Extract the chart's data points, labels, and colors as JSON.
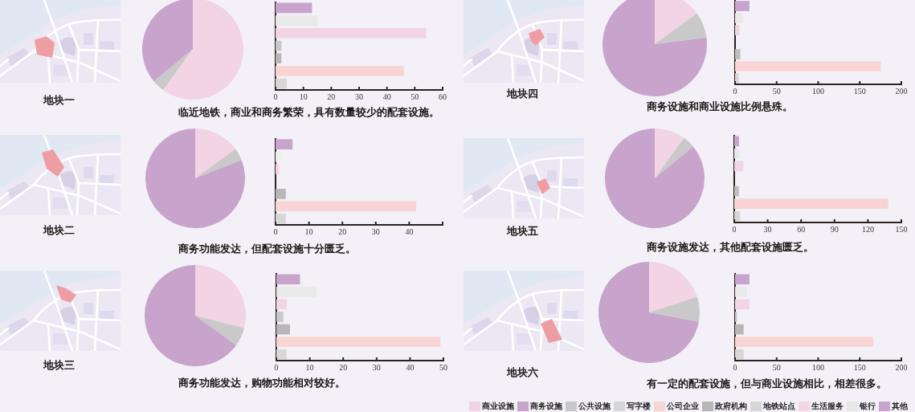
{
  "chart_data": [
    {
      "type": "pie",
      "title": "地块一",
      "annotations": [
        "临近地铁，商业和商务繁荣，具有数量较少的配套设施。"
      ],
      "categories": [
        null,
        null,
        null
      ],
      "values": [
        60,
        4,
        36
      ],
      "colors": [
        "#f2d4e4",
        "#c9c9c9",
        "#c8a3cb"
      ]
    },
    {
      "type": "bar",
      "orientation": "horizontal",
      "tick_labels": "x",
      "categories": [
        null,
        null,
        null,
        null,
        null,
        null,
        null
      ],
      "values": [
        13,
        15,
        54,
        2,
        2,
        46,
        4
      ],
      "colors": [
        "#c8a3cb",
        "#e8e9e8",
        "#f2d4e4",
        "#c7c8c7",
        "#b6b7b6",
        "#f8d5d4",
        "#d6d7d6"
      ],
      "xlim": [
        0,
        60
      ],
      "xticks": [
        0,
        10,
        20,
        30,
        40,
        50,
        60
      ]
    },
    {
      "type": "pie",
      "title": "地块四",
      "annotations": [
        "商务设施和商业设施比例悬殊。"
      ],
      "categories": [
        null,
        null,
        null
      ],
      "values": [
        15,
        8,
        77
      ],
      "colors": [
        "#f2d4e4",
        "#c9c9c9",
        "#c8a3cb"
      ]
    },
    {
      "type": "bar",
      "orientation": "horizontal",
      "tick_labels": "x",
      "categories": [
        null,
        null,
        null,
        null,
        null,
        null,
        null
      ],
      "values": [
        17,
        9,
        5,
        null,
        6,
        175,
        4
      ],
      "colors": [
        "#c8a3cb",
        "#e8e9e8",
        "#f2d4e4",
        "#c7c8c7",
        "#bdbebd",
        "#f8d5d4",
        "#d6d7d6"
      ],
      "xlim": [
        0,
        200
      ],
      "xticks": [
        0,
        50,
        100,
        150,
        200
      ]
    },
    {
      "type": "pie",
      "title": "地块二",
      "annotations": [
        "商务功能发达，但配套设施十分匮乏。"
      ],
      "categories": [
        null,
        null,
        null
      ],
      "values": [
        15,
        4,
        81
      ],
      "colors": [
        "#f2d4e4",
        "#c9c9c9",
        "#c8a3cb"
      ]
    },
    {
      "type": "bar",
      "orientation": "horizontal",
      "tick_labels": "x",
      "categories": [
        null,
        null,
        null,
        null,
        null,
        null,
        null
      ],
      "values": [
        5,
        2,
        1,
        null,
        3,
        42,
        3
      ],
      "colors": [
        "#c8a3cb",
        "#eef0ee",
        "#f2d4e4",
        "#c7c8c7",
        "#b6b7b6",
        "#f8d5d4",
        "#d6d7d6"
      ],
      "xlim": [
        0,
        50
      ],
      "xticks": [
        0,
        10,
        20,
        30,
        40,
        {
          "value": 50,
          "label": null
        }
      ]
    },
    {
      "type": "pie",
      "title": "地块五",
      "annotations": [
        "商务设施发达，其他配套设施匮乏。"
      ],
      "categories": [
        null,
        null,
        null
      ],
      "values": [
        10,
        4,
        86
      ],
      "colors": [
        "#f2d4e4",
        "#c9c9c9",
        "#c8a3cb"
      ]
    },
    {
      "type": "bar",
      "orientation": "horizontal",
      "tick_labels": "x",
      "categories": [
        null,
        null,
        null,
        null,
        null,
        null,
        null
      ],
      "values": [
        4,
        4,
        8,
        null,
        4,
        138,
        5
      ],
      "colors": [
        "#c8a3cb",
        "#e8e9e8",
        "#f2d4e4",
        "#c7c8c7",
        "#bdbebd",
        "#f8d5d4",
        "#d6d7d6"
      ],
      "xlim": [
        0,
        150
      ],
      "xticks": [
        0,
        30,
        60,
        90,
        120,
        150
      ]
    },
    {
      "type": "pie",
      "title": "地块三",
      "annotations": [
        "商务功能发达，购物功能相对较好。"
      ],
      "categories": [
        null,
        null,
        null
      ],
      "values": [
        29,
        6,
        65
      ],
      "colors": [
        "#f2d4e4",
        "#c9c9c9",
        "#c8a3cb"
      ]
    },
    {
      "type": "bar",
      "orientation": "horizontal",
      "tick_labels": "x",
      "categories": [
        null,
        null,
        null,
        null,
        null,
        null,
        null
      ],
      "values": [
        7,
        12,
        3,
        2,
        4,
        49,
        3
      ],
      "colors": [
        "#c8a3cb",
        "#e8e9e8",
        "#f2d4e4",
        "#c7c8c7",
        "#b6b7b6",
        "#f8d5d4",
        "#d6d7d6"
      ],
      "xlim": [
        0,
        50
      ],
      "xticks": [
        0,
        10,
        20,
        30,
        40,
        50
      ]
    },
    {
      "type": "pie",
      "title": "地块六",
      "annotations": [
        "有一定的配套设施，但与商业设施相比，相差很多。"
      ],
      "categories": [
        null,
        null,
        null
      ],
      "values": [
        20,
        8,
        72
      ],
      "colors": [
        "#f2d4e4",
        "#c9c9c9",
        "#c8a3cb"
      ]
    },
    {
      "type": "bar",
      "orientation": "horizontal",
      "tick_labels": "x",
      "categories": [
        null,
        null,
        null,
        null,
        null,
        null,
        null
      ],
      "values": [
        17,
        14,
        17,
        2,
        10,
        166,
        10
      ],
      "colors": [
        "#c8a3cb",
        "#e8e9e8",
        "#f2d4e4",
        "#c7c8c7",
        "#b6b7b6",
        "#f8d5d4",
        "#d6d7d6"
      ],
      "xlim": [
        0,
        200
      ],
      "xticks": [
        0,
        50,
        100,
        150,
        200
      ]
    },
    {
      "type": "other",
      "categories": [
        "商业设施",
        "商务设施",
        "公共设施",
        "写字楼",
        "公司企业",
        "政府机构",
        "地铁站点",
        "生活服务",
        "银行",
        "其他"
      ],
      "colors": [
        "#f2d3e3",
        "#c8a3cb",
        "#c8c8c8",
        "#d5d6d5",
        "#f8d4d3",
        "#b5b6b5",
        "#d6d6d6",
        "#f2d6e5",
        "#e6e7e6",
        "#c8a3cb"
      ]
    }
  ]
}
